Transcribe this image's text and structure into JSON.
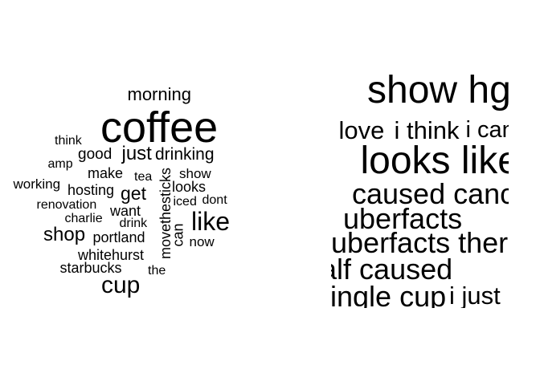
{
  "colors": {
    "background": "#ffffff",
    "text": "#000000"
  },
  "chart_data": [
    {
      "type": "wordcloud",
      "words": [
        {
          "text": "coffee",
          "weight": 1.0
        },
        {
          "text": "morning",
          "weight": 0.4
        },
        {
          "text": "like",
          "weight": 0.6
        },
        {
          "text": "cup",
          "weight": 0.56
        },
        {
          "text": "just",
          "weight": 0.45
        },
        {
          "text": "shop",
          "weight": 0.45
        },
        {
          "text": "drinking",
          "weight": 0.38
        },
        {
          "text": "get",
          "weight": 0.42
        },
        {
          "text": "good",
          "weight": 0.36
        },
        {
          "text": "make",
          "weight": 0.34
        },
        {
          "text": "hosting",
          "weight": 0.34
        },
        {
          "text": "looks",
          "weight": 0.34
        },
        {
          "text": "show",
          "weight": 0.32
        },
        {
          "text": "want",
          "weight": 0.34
        },
        {
          "text": "portland",
          "weight": 0.34
        },
        {
          "text": "whitehurst",
          "weight": 0.34
        },
        {
          "text": "starbucks",
          "weight": 0.34
        },
        {
          "text": "working",
          "weight": 0.32
        },
        {
          "text": "renovation",
          "weight": 0.3
        },
        {
          "text": "charlie",
          "weight": 0.3
        },
        {
          "text": "amp",
          "weight": 0.3
        },
        {
          "text": "think",
          "weight": 0.3
        },
        {
          "text": "tea",
          "weight": 0.3
        },
        {
          "text": "iced",
          "weight": 0.3
        },
        {
          "text": "dont",
          "weight": 0.3
        },
        {
          "text": "drink",
          "weight": 0.3
        },
        {
          "text": "can",
          "weight": 0.34
        },
        {
          "text": "now",
          "weight": 0.32
        },
        {
          "text": "the",
          "weight": 0.3
        },
        {
          "text": "movethesticks",
          "weight": 0.34
        }
      ]
    },
    {
      "type": "wordcloud",
      "words": [
        {
          "text": "show hgtv",
          "weight": 1.0
        },
        {
          "text": "looks like",
          "weight": 1.0
        },
        {
          "text": "love",
          "weight": 0.65
        },
        {
          "text": "i think",
          "weight": 0.65
        },
        {
          "text": "i can",
          "weight": 0.6
        },
        {
          "text": "caused cancer",
          "weight": 0.75
        },
        {
          "text": "uberfacts",
          "weight": 0.75
        },
        {
          "text": "uberfacts there",
          "weight": 0.75
        },
        {
          "text": "half caused",
          "weight": 0.75
        },
        {
          "text": "single cup",
          "weight": 0.75
        },
        {
          "text": "i just",
          "weight": 0.65
        }
      ]
    }
  ]
}
